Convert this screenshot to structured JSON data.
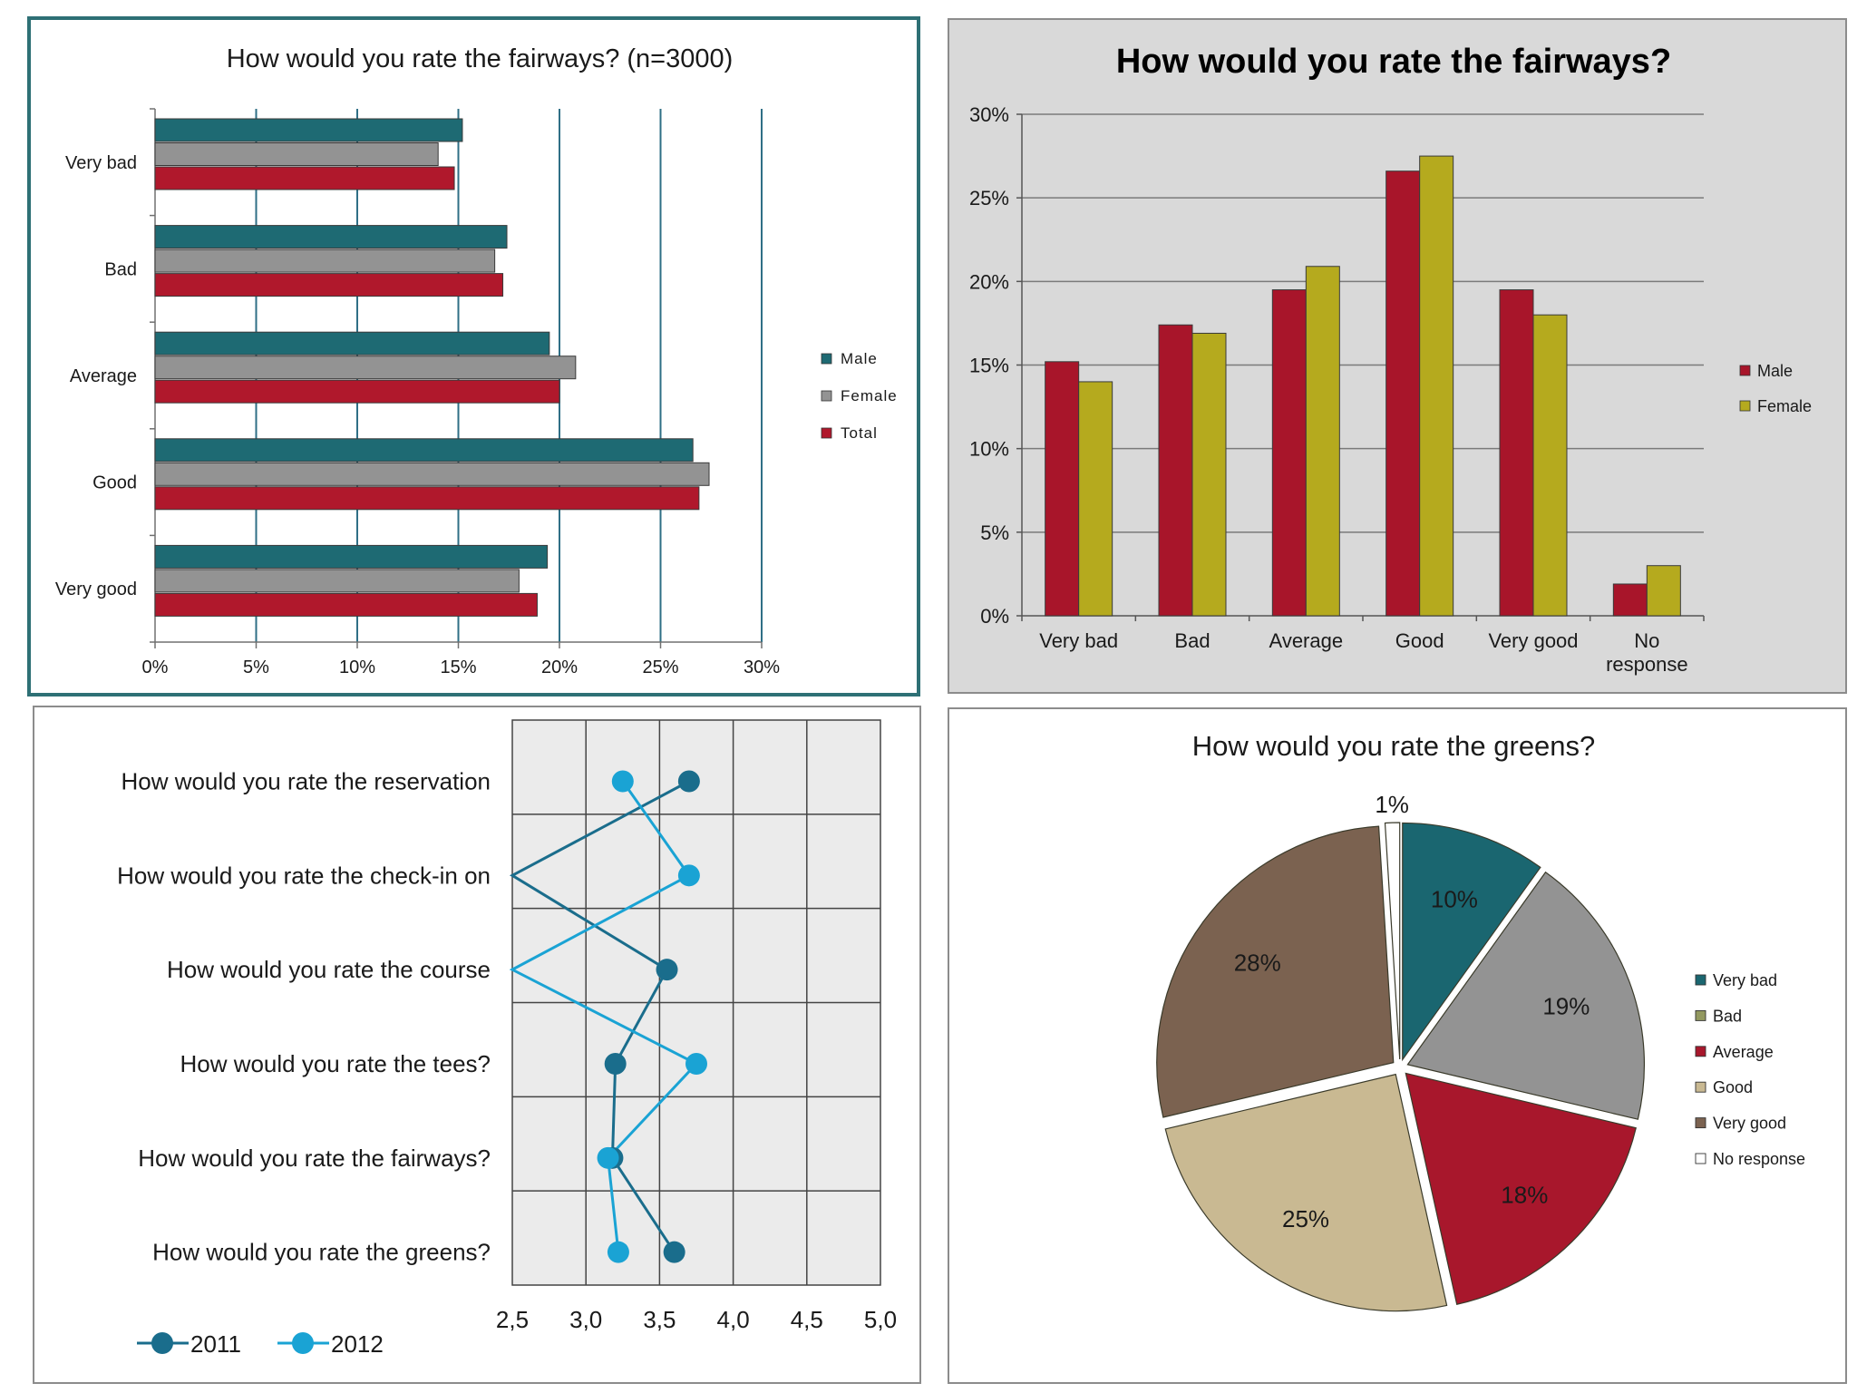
{
  "chart_data": [
    {
      "id": "fairways-horizontal",
      "type": "bar",
      "orientation": "horizontal",
      "title": "How would you rate the fairways? (n=3000)",
      "categories": [
        "Very bad",
        "Bad",
        "Average",
        "Good",
        "Very good"
      ],
      "series": [
        {
          "name": "Male",
          "color": "#1e6a73",
          "values": [
            15.2,
            17.4,
            19.5,
            26.6,
            19.4
          ]
        },
        {
          "name": "Female",
          "color": "#939393",
          "values": [
            14.0,
            16.8,
            20.8,
            27.4,
            18.0
          ]
        },
        {
          "name": "Total",
          "color": "#b0182c",
          "values": [
            14.8,
            17.2,
            20.0,
            26.9,
            18.9
          ]
        }
      ],
      "xlim": [
        0,
        30
      ],
      "xticks": [
        "0%",
        "5%",
        "10%",
        "15%",
        "20%",
        "25%",
        "30%"
      ],
      "grid": true,
      "legend": "right"
    },
    {
      "id": "fairways-vertical",
      "type": "bar",
      "orientation": "vertical",
      "title": "How would you rate the fairways?",
      "categories": [
        "Very bad",
        "Bad",
        "Average",
        "Good",
        "Very good",
        "No response"
      ],
      "series": [
        {
          "name": "Male",
          "color": "#a8152a",
          "values": [
            15.2,
            17.4,
            19.5,
            26.6,
            19.5,
            1.9
          ]
        },
        {
          "name": "Female",
          "color": "#b5aa1e",
          "values": [
            14.0,
            16.9,
            20.9,
            27.5,
            18.0,
            3.0
          ]
        }
      ],
      "ylim": [
        0,
        30
      ],
      "yticks": [
        "0%",
        "5%",
        "10%",
        "15%",
        "20%",
        "25%",
        "30%"
      ],
      "grid": true,
      "legend": "right"
    },
    {
      "id": "ratings-line",
      "type": "line",
      "orientation": "horizontal",
      "categories": [
        "How would you rate the reservation",
        "How would you rate the check-in on",
        "How would you rate the course",
        "How would you rate the tees?",
        "How would you rate the fairways?",
        "How would you rate the greens?"
      ],
      "series": [
        {
          "name": "2011",
          "color": "#1a6d8c",
          "values": [
            3.7,
            2.5,
            3.55,
            3.2,
            3.18,
            3.6
          ]
        },
        {
          "name": "2012",
          "color": "#1aa3d4",
          "values": [
            3.25,
            3.7,
            2.5,
            3.75,
            3.15,
            3.22
          ]
        }
      ],
      "xlim": [
        2.5,
        5.0
      ],
      "xticks": [
        "2,5",
        "3,0",
        "3,5",
        "4,0",
        "4,5",
        "5,0"
      ],
      "grid": true,
      "legend": "bottom"
    },
    {
      "id": "greens-pie",
      "type": "pie",
      "title": "How would you rate the greens?",
      "slices": [
        {
          "name": "Very bad",
          "value": 10,
          "label": "10%",
          "color": "#1a6670"
        },
        {
          "name": "Bad",
          "value": 19,
          "label": "19%",
          "color": "#939393"
        },
        {
          "name": "Average",
          "value": 18,
          "label": "18%",
          "color": "#a8172c"
        },
        {
          "name": "Good",
          "value": 25,
          "label": "25%",
          "color": "#c9b992"
        },
        {
          "name": "Very good",
          "value": 28,
          "label": "28%",
          "color": "#7b6250"
        },
        {
          "name": "No response",
          "value": 1,
          "label": "1%",
          "color": "#ffffff"
        }
      ],
      "legend_colors": [
        "#1a6670",
        "#939960",
        "#a8172c",
        "#c9b992",
        "#7b6250",
        "#ffffff"
      ],
      "legend": "right"
    }
  ]
}
